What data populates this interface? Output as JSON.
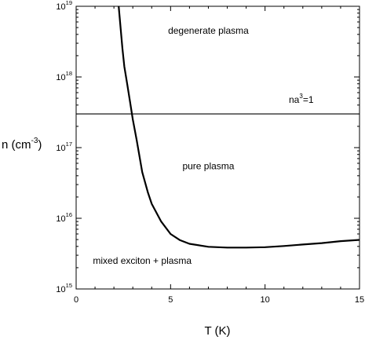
{
  "chart_data": {
    "type": "line",
    "xlabel": "T (K)",
    "ylabel": {
      "base": "n (cm",
      "exponent": "-3",
      "close": ")"
    },
    "xlim": [
      0,
      15
    ],
    "ylim": [
      1000000000000000.0,
      1e+19
    ],
    "yscale": "log",
    "grid": false,
    "x_ticks": [
      {
        "value": 0,
        "label": "0"
      },
      {
        "value": 5,
        "label": "5"
      },
      {
        "value": 10,
        "label": "10"
      },
      {
        "value": 15,
        "label": "15"
      }
    ],
    "y_ticks": [
      {
        "value": 1000000000000000.0,
        "base": "10",
        "exp": "15"
      },
      {
        "value": 1e+16,
        "base": "10",
        "exp": "16"
      },
      {
        "value": 1e+17,
        "base": "10",
        "exp": "17"
      },
      {
        "value": 1e+18,
        "base": "10",
        "exp": "18"
      },
      {
        "value": 1e+19,
        "base": "10",
        "exp": "19"
      }
    ],
    "series": [
      {
        "points": [
          [
            2.25,
            1e+19
          ],
          [
            2.35,
            5e+18
          ],
          [
            2.45,
            2.5e+18
          ],
          [
            2.55,
            1.4e+18
          ],
          [
            2.7,
            8e+17
          ],
          [
            2.85,
            4.5e+17
          ],
          [
            3.0,
            2.5e+17
          ],
          [
            3.2,
            1.3e+17
          ],
          [
            3.5,
            4.5e+16
          ],
          [
            3.8,
            2.3e+16
          ],
          [
            4.0,
            1.6e+16
          ],
          [
            4.5,
            9000000000000000.0
          ],
          [
            5.0,
            6000000000000000.0
          ],
          [
            5.5,
            4900000000000000.0
          ],
          [
            6.0,
            4350000000000000.0
          ],
          [
            7.0,
            3950000000000000.0
          ],
          [
            8.0,
            3850000000000000.0
          ],
          [
            9.0,
            3850000000000000.0
          ],
          [
            10.0,
            3900000000000000.0
          ],
          [
            11.0,
            4050000000000000.0
          ],
          [
            12.0,
            4250000000000000.0
          ],
          [
            13.0,
            4450000000000000.0
          ],
          [
            14.0,
            4750000000000000.0
          ],
          [
            15.0,
            4950000000000000.0
          ]
        ]
      }
    ],
    "horizontal_lines": [
      {
        "y": 3e+17,
        "label": {
          "base": "na",
          "exp": "3",
          "tail": "=1"
        }
      }
    ],
    "annotations": [
      {
        "text": "degenerate plasma",
        "x": 7.0,
        "y": 4.5e+18
      },
      {
        "text": "pure plasma",
        "x": 7.0,
        "y": 5.5e+16
      },
      {
        "text": "mixed exciton + plasma",
        "x": 3.5,
        "y": 2500000000000000.0
      }
    ]
  }
}
